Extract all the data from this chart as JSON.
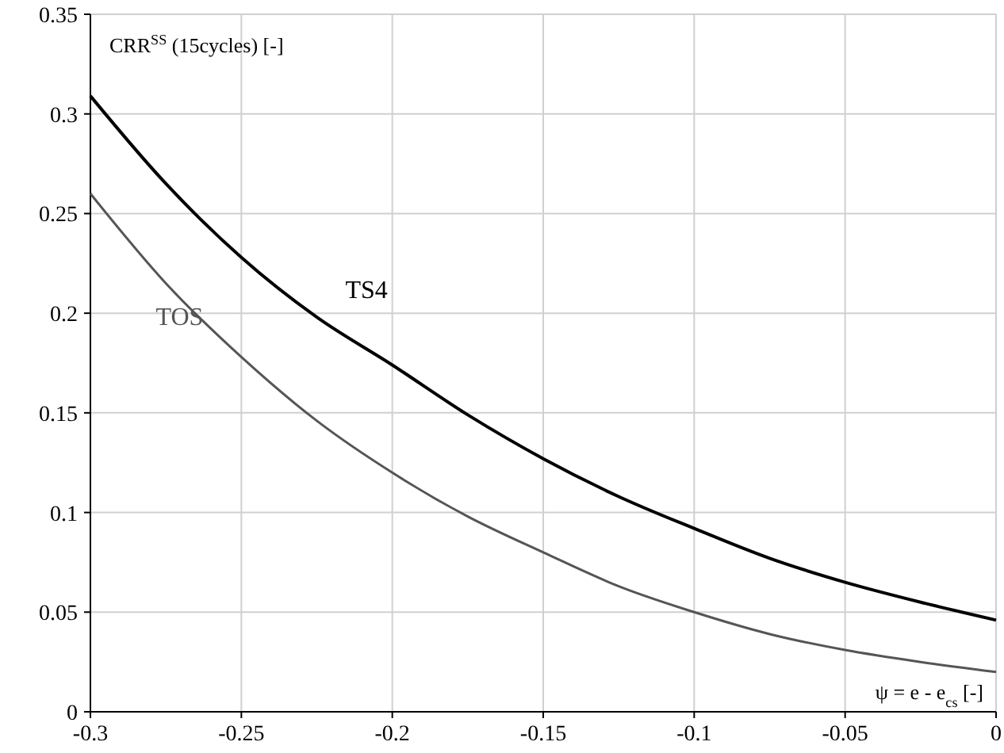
{
  "chart_data": {
    "type": "line",
    "xlabel": "ψ = e - e$_{cs}$ [-]",
    "ylabel": "CRR$^{SS}$ (15cycles) [-]",
    "xlim": [
      -0.3,
      0
    ],
    "xticks": [
      -0.3,
      -0.25,
      -0.2,
      -0.15,
      -0.1,
      -0.05,
      0
    ],
    "ylim": [
      0,
      0.35
    ],
    "yticks": [
      0,
      0.05,
      0.1,
      0.15,
      0.2,
      0.25,
      0.3,
      0.35
    ],
    "grid": true,
    "marker": "none",
    "line_style": "solid",
    "x": [
      -0.3,
      -0.275,
      -0.25,
      -0.225,
      -0.2,
      -0.175,
      -0.15,
      -0.125,
      -0.1,
      -0.075,
      -0.05,
      -0.025,
      0
    ],
    "series": [
      {
        "name": "TS4",
        "color": "#000000",
        "values": [
          0.309,
          0.265,
          0.228,
          0.198,
          0.174,
          0.149,
          0.127,
          0.108,
          0.092,
          0.077,
          0.065,
          0.055,
          0.046
        ]
      },
      {
        "name": "TOS",
        "color": "#555555",
        "values": [
          0.26,
          0.215,
          0.178,
          0.146,
          0.12,
          0.098,
          0.08,
          0.063,
          0.05,
          0.039,
          0.031,
          0.025,
          0.02
        ]
      }
    ]
  }
}
